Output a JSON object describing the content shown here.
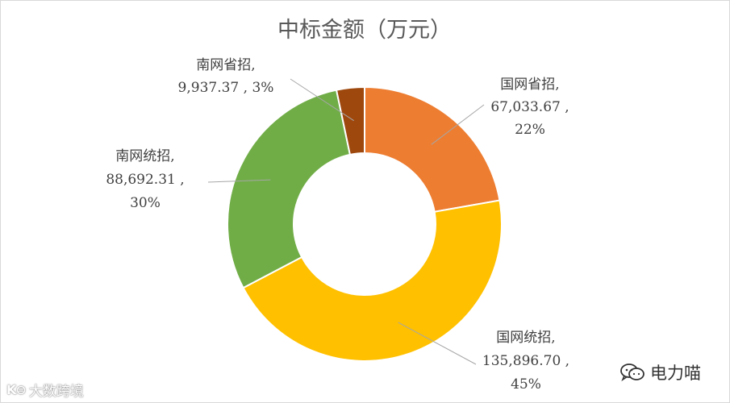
{
  "chart_data": {
    "type": "donut",
    "title": "中标金额（万元）",
    "slices": [
      {
        "name": "国网省招",
        "value": 67033.67,
        "value_label": "67,033.67 ,",
        "percent_label": "22%",
        "color": "#ED7D31",
        "label_lines": [
          "国网省招,",
          "67,033.67 ,",
          "22%"
        ]
      },
      {
        "name": "国网统招",
        "value": 135896.7,
        "value_label": "135,896.70 ,",
        "percent_label": "45%",
        "color": "#FFC000",
        "label_lines": [
          "国网统招,",
          "135,896.70 ,",
          "45%"
        ]
      },
      {
        "name": "南网统招",
        "value": 88692.31,
        "value_label": "88,692.31 ,",
        "percent_label": "30%",
        "color": "#70AD47",
        "label_lines": [
          "南网统招,",
          "88,692.31 ,",
          "30%"
        ]
      },
      {
        "name": "南网省招",
        "value": 9937.37,
        "value_label": "9,937.37 , 3%",
        "percent_label": "3%",
        "color": "#9E480E",
        "label_lines": [
          "南网省招,",
          "9,937.37 ,  3%"
        ]
      }
    ],
    "legend": "none",
    "start_angle_deg": 0,
    "direction": "clockwise"
  },
  "watermark_left": {
    "text": "大数跨境",
    "icon": "ks-logo-icon"
  },
  "watermark_right": {
    "text": "电力喵",
    "icon": "wechat-icon"
  }
}
